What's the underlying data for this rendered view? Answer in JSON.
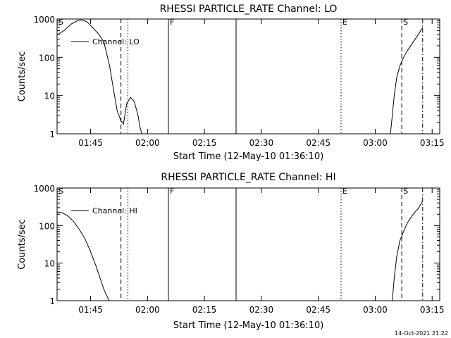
{
  "footer": {
    "timestamp": "14-Oct-2021 21:22"
  },
  "chart_data": [
    {
      "type": "line",
      "title": "RHESSI PARTICLE_RATE Channel: LO",
      "xlabel": "Start Time (12-May-10 01:36:10)",
      "ylabel": "Counts/sec",
      "y_scale": "log",
      "xlim": [
        "01:36:10",
        "03:17:00"
      ],
      "ylim": [
        1,
        1000
      ],
      "x_ticks": [
        "01:45",
        "02:00",
        "02:15",
        "02:30",
        "02:45",
        "03:00",
        "03:15"
      ],
      "y_ticks": [
        "1",
        "10",
        "100",
        "1000"
      ],
      "legend": {
        "position": "top-left",
        "entries": [
          "Channel: LO"
        ]
      },
      "markers": [
        {
          "label": "S",
          "time": "01:36:10",
          "style": "none"
        },
        {
          "label": "",
          "time": "01:53:00",
          "style": "dashed"
        },
        {
          "label": "",
          "time": "01:54:50",
          "style": "dotted"
        },
        {
          "label": "F",
          "time": "02:05:30",
          "style": "solid"
        },
        {
          "label": "",
          "time": "02:23:20",
          "style": "solid"
        },
        {
          "label": "E",
          "time": "02:51:00",
          "style": "dotted"
        },
        {
          "label": "S",
          "time": "03:07:00",
          "style": "dashed"
        },
        {
          "label": "",
          "time": "03:12:30",
          "style": "dashdot"
        }
      ],
      "series": [
        {
          "name": "Channel: LO",
          "segments": [
            [
              [
                "01:36:10",
                380
              ],
              [
                "01:38:00",
                500
              ],
              [
                "01:40:00",
                750
              ],
              [
                "01:41:30",
                900
              ],
              [
                "01:42:30",
                950
              ],
              [
                "01:44:00",
                850
              ],
              [
                "01:45:30",
                600
              ],
              [
                "01:47:00",
                420
              ],
              [
                "01:48:30",
                250
              ],
              [
                "01:50:00",
                60
              ],
              [
                "01:51:00",
                15
              ],
              [
                "01:52:00",
                4
              ],
              [
                "01:53:00",
                2.2
              ],
              [
                "01:53:40",
                1.8
              ],
              [
                "01:54:30",
                6
              ],
              [
                "01:55:30",
                9
              ],
              [
                "01:56:30",
                7
              ],
              [
                "01:57:30",
                3
              ],
              [
                "01:58:00",
                1.5
              ],
              [
                "01:58:30",
                1
              ]
            ],
            [
              [
                "03:04:00",
                1
              ],
              [
                "03:04:30",
                3
              ],
              [
                "03:05:00",
                10
              ],
              [
                "03:05:40",
                30
              ],
              [
                "03:06:30",
                60
              ],
              [
                "03:07:30",
                100
              ],
              [
                "03:08:30",
                150
              ],
              [
                "03:10:00",
                250
              ],
              [
                "03:11:00",
                350
              ],
              [
                "03:12:30",
                600
              ]
            ]
          ]
        }
      ]
    },
    {
      "type": "line",
      "title": "RHESSI PARTICLE_RATE Channel: HI",
      "xlabel": "Start Time (12-May-10 01:36:10)",
      "ylabel": "Counts/sec",
      "y_scale": "log",
      "xlim": [
        "01:36:10",
        "03:17:00"
      ],
      "ylim": [
        1,
        1000
      ],
      "x_ticks": [
        "01:45",
        "02:00",
        "02:15",
        "02:30",
        "02:45",
        "03:00",
        "03:15"
      ],
      "y_ticks": [
        "1",
        "10",
        "100",
        "1000"
      ],
      "legend": {
        "position": "top-left",
        "entries": [
          "Channel: HI"
        ]
      },
      "markers": [
        {
          "label": "S",
          "time": "01:36:10",
          "style": "none"
        },
        {
          "label": "",
          "time": "01:53:00",
          "style": "dashed"
        },
        {
          "label": "",
          "time": "01:54:50",
          "style": "dotted"
        },
        {
          "label": "F",
          "time": "02:05:30",
          "style": "solid"
        },
        {
          "label": "",
          "time": "02:23:20",
          "style": "solid"
        },
        {
          "label": "E",
          "time": "02:51:00",
          "style": "dotted"
        },
        {
          "label": "S",
          "time": "03:07:00",
          "style": "dashed"
        },
        {
          "label": "",
          "time": "03:12:30",
          "style": "dashdot"
        }
      ],
      "series": [
        {
          "name": "Channel: HI",
          "segments": [
            [
              [
                "01:36:10",
                230
              ],
              [
                "01:37:30",
                220
              ],
              [
                "01:39:00",
                180
              ],
              [
                "01:40:30",
                130
              ],
              [
                "01:42:00",
                80
              ],
              [
                "01:43:30",
                45
              ],
              [
                "01:45:00",
                20
              ],
              [
                "01:46:30",
                8
              ],
              [
                "01:47:30",
                4
              ],
              [
                "01:48:30",
                2
              ],
              [
                "01:49:30",
                1.2
              ],
              [
                "01:50:00",
                1
              ]
            ],
            [
              [
                "03:04:30",
                1
              ],
              [
                "03:05:00",
                4
              ],
              [
                "03:05:40",
                15
              ],
              [
                "03:06:30",
                40
              ],
              [
                "03:07:30",
                70
              ],
              [
                "03:08:30",
                120
              ],
              [
                "03:10:00",
                200
              ],
              [
                "03:11:30",
                300
              ],
              [
                "03:12:30",
                450
              ]
            ]
          ]
        }
      ]
    }
  ]
}
